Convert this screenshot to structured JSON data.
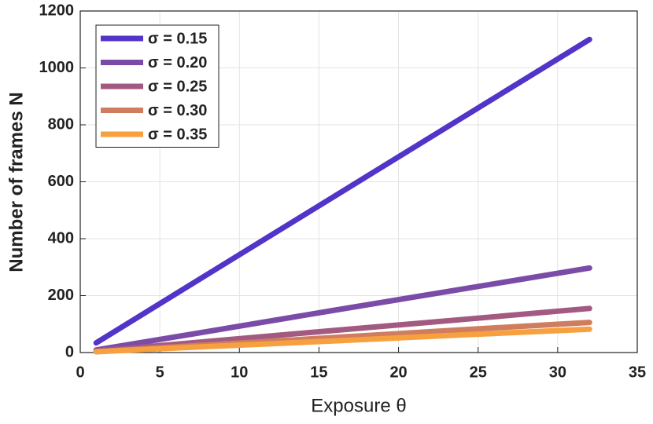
{
  "chart_data": {
    "type": "line",
    "x_label": "Exposure θ",
    "y_label": "Number of frames N",
    "x": [
      1,
      8,
      16,
      24,
      32
    ],
    "series": [
      {
        "name": "σ = 0.15",
        "color": "#5234c8",
        "values": [
          34,
          275,
          550,
          825,
          1100
        ]
      },
      {
        "name": "σ = 0.20",
        "color": "#7b4ba8",
        "values": [
          9,
          74,
          149,
          223,
          297
        ]
      },
      {
        "name": "σ = 0.25",
        "color": "#a35a80",
        "values": [
          5,
          39,
          78,
          116,
          155
        ]
      },
      {
        "name": "σ = 0.30",
        "color": "#d07c5e",
        "values": [
          3,
          27,
          53,
          80,
          106
        ]
      },
      {
        "name": "σ = 0.35",
        "color": "#f7a040",
        "values": [
          3,
          21,
          41,
          62,
          82
        ]
      }
    ],
    "xlim": [
      0,
      35
    ],
    "xticks": [
      0,
      5,
      10,
      15,
      20,
      25,
      30,
      35
    ],
    "ylim": [
      0,
      1200
    ],
    "yticks": [
      0,
      200,
      400,
      600,
      800,
      1000,
      1200
    ],
    "grid": true,
    "legend": "upper left"
  }
}
